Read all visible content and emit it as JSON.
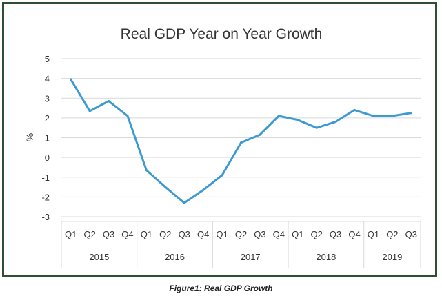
{
  "chart_data": {
    "type": "line",
    "title": "Real GDP Year on Year Growth",
    "ylabel": "%",
    "xlabel": "",
    "ylim": [
      -3,
      5
    ],
    "yticks": [
      5,
      4,
      3,
      2,
      1,
      0,
      -1,
      -2,
      -3
    ],
    "grid": true,
    "categories": [
      "Q1",
      "Q2",
      "Q3",
      "Q4",
      "Q1",
      "Q2",
      "Q3",
      "Q4",
      "Q1",
      "Q2",
      "Q3",
      "Q4",
      "Q1",
      "Q2",
      "Q3",
      "Q4",
      "Q1",
      "Q2",
      "Q3"
    ],
    "groups": [
      {
        "label": "2015",
        "span": 4
      },
      {
        "label": "2016",
        "span": 4
      },
      {
        "label": "2017",
        "span": 4
      },
      {
        "label": "2018",
        "span": 4
      },
      {
        "label": "2019",
        "span": 3
      }
    ],
    "series": [
      {
        "values": [
          3.95,
          2.35,
          2.85,
          2.1,
          -0.65,
          -1.5,
          -2.3,
          -1.65,
          -0.9,
          0.75,
          1.15,
          2.1,
          1.9,
          1.5,
          1.8,
          2.4,
          2.1,
          2.1,
          2.25
        ]
      }
    ],
    "line_color": "#3d9ad1"
  },
  "caption": "Figure1: Real GDP Growth"
}
